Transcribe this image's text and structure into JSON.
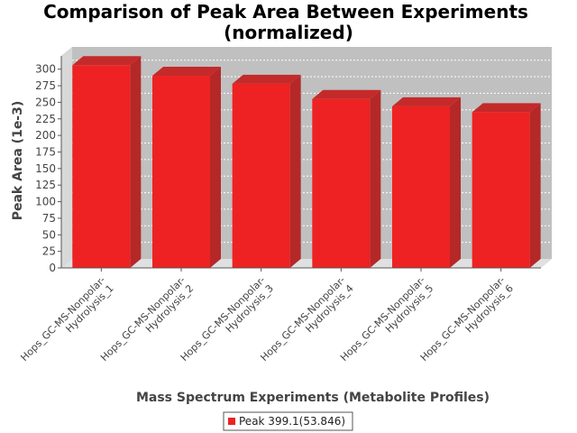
{
  "chart_data": {
    "type": "bar",
    "title_line1": "Comparison of Peak Area Between Experiments",
    "title_line2": "(normalized)",
    "xlabel": "Mass Spectrum Experiments (Metabolite Profiles)",
    "ylabel": "Peak Area (1e-3)",
    "categories": [
      [
        "Hops_GC-MS-Nonpolar-",
        "Hydrolysis_1"
      ],
      [
        "Hops_GC-MS-Nonpolar-",
        "Hydrolysis_2"
      ],
      [
        "Hops_GC-MS-Nonpolar-",
        "Hydrolysis_3"
      ],
      [
        "Hops_GC-MS-Nonpolar-",
        "Hydrolysis_4"
      ],
      [
        "Hops_GC-MS-Nonpolar-",
        "Hydrolysis_5"
      ],
      [
        "Hops_GC-MS-Nonpolar-",
        "Hydrolysis_6"
      ]
    ],
    "series": [
      {
        "name": "Peak 399.1(53.846)",
        "color": "#ee2222",
        "values": [
          306,
          290,
          278,
          255,
          244,
          235
        ]
      }
    ],
    "ylim": [
      0,
      320
    ],
    "yticks": [
      "0",
      "25",
      "50",
      "75",
      "100",
      "125",
      "150",
      "175",
      "200",
      "225",
      "250",
      "275",
      "300"
    ],
    "grid": true,
    "legend_position": "bottom"
  }
}
